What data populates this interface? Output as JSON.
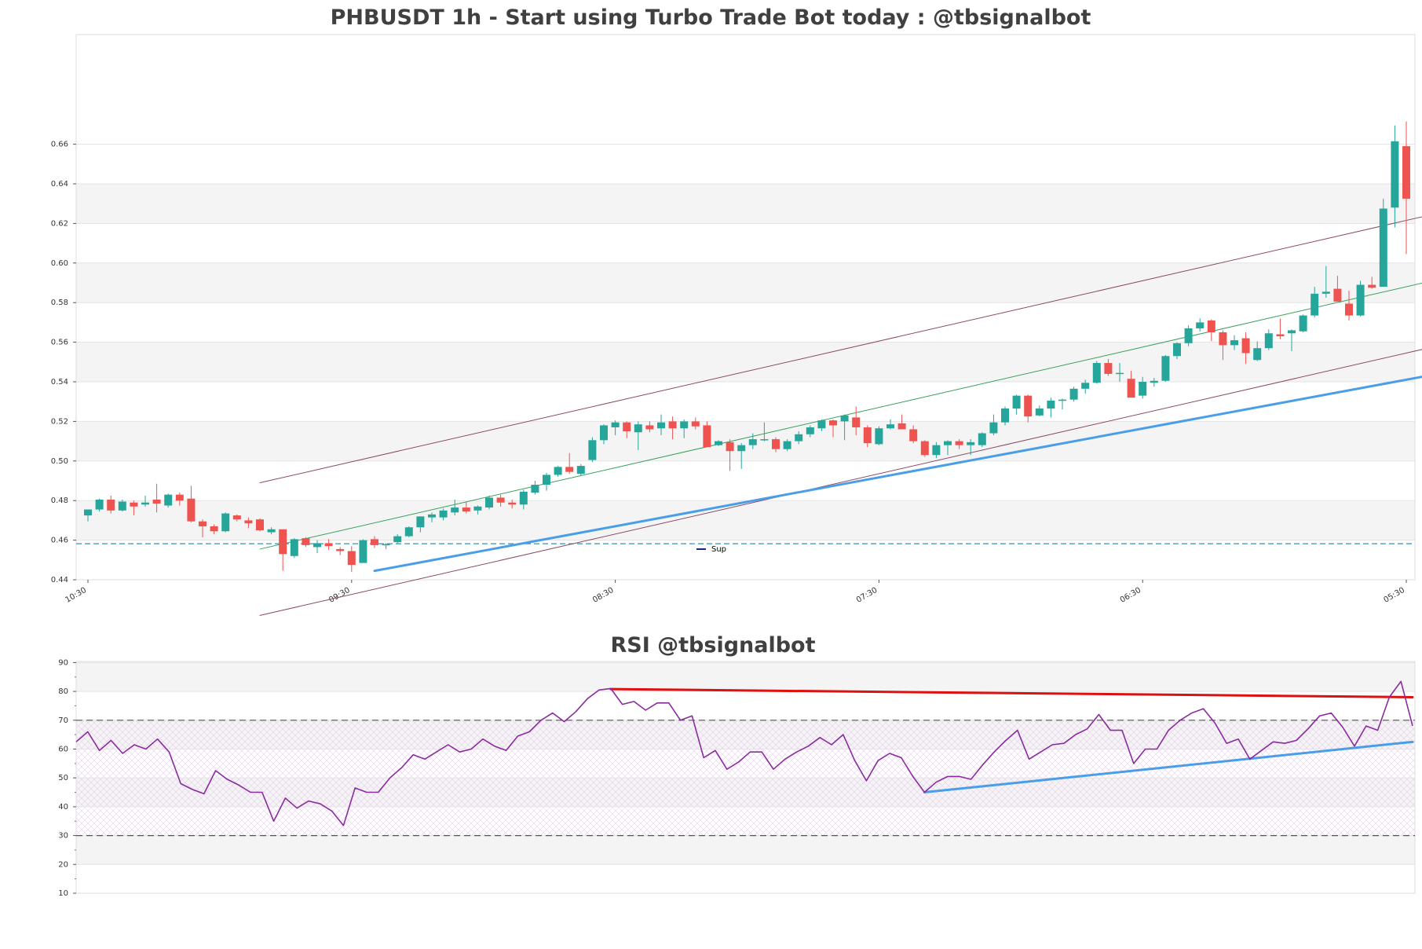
{
  "chart_data": [
    {
      "type": "candlestick",
      "title": "PHBUSDT 1h - Start using Turbo Trade Bot today : @tbsignalbot",
      "ylim": [
        0.44,
        0.674
      ],
      "y_ticks": [
        0.44,
        0.46,
        0.48,
        0.5,
        0.52,
        0.54,
        0.56,
        0.58,
        0.6,
        0.62,
        0.64,
        0.66
      ],
      "x_tick_labels": [
        "10:30",
        "09:30",
        "08:30",
        "07:30",
        "06:30",
        "05:30"
      ],
      "x_tick_index": [
        0,
        23,
        46,
        69,
        92,
        115
      ],
      "candles": [
        [
          0.4725,
          0.4755,
          0.4695,
          0.4755
        ],
        [
          0.4755,
          0.481,
          0.4745,
          0.4805
        ],
        [
          0.4805,
          0.4825,
          0.4735,
          0.475
        ],
        [
          0.475,
          0.4805,
          0.4745,
          0.4795
        ],
        [
          0.479,
          0.48,
          0.4725,
          0.477
        ],
        [
          0.478,
          0.4825,
          0.477,
          0.479
        ],
        [
          0.4805,
          0.4885,
          0.474,
          0.4785
        ],
        [
          0.4775,
          0.4835,
          0.4765,
          0.483
        ],
        [
          0.483,
          0.484,
          0.4775,
          0.48
        ],
        [
          0.481,
          0.4875,
          0.469,
          0.4695
        ],
        [
          0.4695,
          0.4705,
          0.4615,
          0.467
        ],
        [
          0.467,
          0.468,
          0.463,
          0.4645
        ],
        [
          0.4645,
          0.474,
          0.464,
          0.4735
        ],
        [
          0.4725,
          0.473,
          0.4695,
          0.4705
        ],
        [
          0.47,
          0.4715,
          0.466,
          0.4685
        ],
        [
          0.4705,
          0.471,
          0.4645,
          0.465
        ],
        [
          0.464,
          0.4665,
          0.463,
          0.4655
        ],
        [
          0.4655,
          0.4655,
          0.4445,
          0.453
        ],
        [
          0.452,
          0.461,
          0.451,
          0.4605
        ],
        [
          0.461,
          0.4615,
          0.4565,
          0.4575
        ],
        [
          0.4565,
          0.46,
          0.4535,
          0.4585
        ],
        [
          0.4585,
          0.4605,
          0.455,
          0.457
        ],
        [
          0.4555,
          0.4565,
          0.4525,
          0.4545
        ],
        [
          0.4545,
          0.457,
          0.444,
          0.4475
        ],
        [
          0.4485,
          0.4605,
          0.4485,
          0.46
        ],
        [
          0.4605,
          0.462,
          0.456,
          0.4575
        ],
        [
          0.4575,
          0.4585,
          0.4555,
          0.458
        ],
        [
          0.459,
          0.463,
          0.4585,
          0.462
        ],
        [
          0.462,
          0.467,
          0.4615,
          0.4665
        ],
        [
          0.4665,
          0.472,
          0.464,
          0.472
        ],
        [
          0.4715,
          0.474,
          0.469,
          0.473
        ],
        [
          0.4715,
          0.476,
          0.47,
          0.475
        ],
        [
          0.474,
          0.4805,
          0.4725,
          0.4765
        ],
        [
          0.4765,
          0.4795,
          0.4735,
          0.4745
        ],
        [
          0.475,
          0.4775,
          0.473,
          0.477
        ],
        [
          0.4765,
          0.4825,
          0.4755,
          0.4815
        ],
        [
          0.4815,
          0.483,
          0.477,
          0.479
        ],
        [
          0.479,
          0.4805,
          0.476,
          0.478
        ],
        [
          0.478,
          0.4855,
          0.4755,
          0.4845
        ],
        [
          0.484,
          0.49,
          0.483,
          0.488
        ],
        [
          0.488,
          0.494,
          0.485,
          0.493
        ],
        [
          0.493,
          0.4975,
          0.492,
          0.497
        ],
        [
          0.497,
          0.504,
          0.4935,
          0.4945
        ],
        [
          0.4935,
          0.4985,
          0.4925,
          0.4975
        ],
        [
          0.5005,
          0.512,
          0.4995,
          0.5105
        ],
        [
          0.5105,
          0.5185,
          0.5085,
          0.518
        ],
        [
          0.517,
          0.5205,
          0.513,
          0.5195
        ],
        [
          0.5195,
          0.52,
          0.5115,
          0.515
        ],
        [
          0.5145,
          0.52,
          0.5055,
          0.5185
        ],
        [
          0.518,
          0.52,
          0.5145,
          0.516
        ],
        [
          0.5165,
          0.5235,
          0.513,
          0.5195
        ],
        [
          0.52,
          0.5225,
          0.511,
          0.5165
        ],
        [
          0.5165,
          0.521,
          0.5115,
          0.52
        ],
        [
          0.52,
          0.522,
          0.516,
          0.5175
        ],
        [
          0.518,
          0.52,
          0.507,
          0.507
        ],
        [
          0.508,
          0.5105,
          0.5075,
          0.51
        ],
        [
          0.5095,
          0.511,
          0.495,
          0.505
        ],
        [
          0.505,
          0.509,
          0.496,
          0.508
        ],
        [
          0.508,
          0.514,
          0.506,
          0.511
        ],
        [
          0.511,
          0.5195,
          0.51,
          0.511
        ],
        [
          0.511,
          0.512,
          0.5045,
          0.506
        ],
        [
          0.506,
          0.511,
          0.505,
          0.51
        ],
        [
          0.51,
          0.515,
          0.5085,
          0.5135
        ],
        [
          0.5135,
          0.518,
          0.512,
          0.517
        ],
        [
          0.5165,
          0.521,
          0.515,
          0.5205
        ],
        [
          0.5205,
          0.521,
          0.512,
          0.518
        ],
        [
          0.52,
          0.5235,
          0.5105,
          0.523
        ],
        [
          0.522,
          0.5275,
          0.513,
          0.517
        ],
        [
          0.517,
          0.518,
          0.507,
          0.509
        ],
        [
          0.5085,
          0.5175,
          0.508,
          0.5165
        ],
        [
          0.5165,
          0.521,
          0.516,
          0.5185
        ],
        [
          0.519,
          0.5235,
          0.516,
          0.516
        ],
        [
          0.516,
          0.518,
          0.509,
          0.51
        ],
        [
          0.51,
          0.5105,
          0.502,
          0.503
        ],
        [
          0.503,
          0.5095,
          0.5015,
          0.508
        ],
        [
          0.508,
          0.5105,
          0.503,
          0.51
        ],
        [
          0.51,
          0.511,
          0.506,
          0.508
        ],
        [
          0.508,
          0.511,
          0.503,
          0.5095
        ],
        [
          0.508,
          0.5145,
          0.507,
          0.514
        ],
        [
          0.514,
          0.5235,
          0.513,
          0.5195
        ],
        [
          0.5195,
          0.5275,
          0.518,
          0.5265
        ],
        [
          0.5265,
          0.5335,
          0.5235,
          0.533
        ],
        [
          0.533,
          0.5335,
          0.5195,
          0.5225
        ],
        [
          0.523,
          0.528,
          0.5225,
          0.5265
        ],
        [
          0.5265,
          0.532,
          0.522,
          0.5305
        ],
        [
          0.5305,
          0.5315,
          0.526,
          0.531
        ],
        [
          0.531,
          0.5375,
          0.53,
          0.5365
        ],
        [
          0.5365,
          0.541,
          0.534,
          0.5395
        ],
        [
          0.5395,
          0.5505,
          0.539,
          0.5495
        ],
        [
          0.5495,
          0.5515,
          0.543,
          0.544
        ],
        [
          0.544,
          0.5495,
          0.54,
          0.5445
        ],
        [
          0.5415,
          0.5455,
          0.533,
          0.532
        ],
        [
          0.533,
          0.5425,
          0.5315,
          0.54
        ],
        [
          0.5395,
          0.542,
          0.5375,
          0.5405
        ],
        [
          0.5405,
          0.5535,
          0.54,
          0.553
        ],
        [
          0.553,
          0.56,
          0.5515,
          0.5595
        ],
        [
          0.5595,
          0.5685,
          0.558,
          0.567
        ],
        [
          0.567,
          0.572,
          0.5655,
          0.57
        ],
        [
          0.571,
          0.5715,
          0.5605,
          0.565
        ],
        [
          0.565,
          0.566,
          0.551,
          0.5585
        ],
        [
          0.5585,
          0.5635,
          0.556,
          0.561
        ],
        [
          0.562,
          0.565,
          0.549,
          0.5545
        ],
        [
          0.551,
          0.5605,
          0.5505,
          0.557
        ],
        [
          0.557,
          0.5665,
          0.556,
          0.5645
        ],
        [
          0.564,
          0.572,
          0.5615,
          0.563
        ],
        [
          0.5645,
          0.5665,
          0.5555,
          0.566
        ],
        [
          0.5655,
          0.574,
          0.565,
          0.5735
        ],
        [
          0.5735,
          0.588,
          0.5725,
          0.5845
        ],
        [
          0.5845,
          0.5985,
          0.5825,
          0.5855
        ],
        [
          0.587,
          0.5935,
          0.5805,
          0.5805
        ],
        [
          0.5795,
          0.586,
          0.571,
          0.5735
        ],
        [
          0.5735,
          0.591,
          0.573,
          0.589
        ],
        [
          0.589,
          0.593,
          0.587,
          0.5875
        ],
        [
          0.588,
          0.6325,
          0.588,
          0.6275
        ],
        [
          0.628,
          0.6695,
          0.618,
          0.6615
        ],
        [
          0.659,
          0.6715,
          0.6045,
          0.6325
        ]
      ],
      "lines": [
        {
          "name": "channel-upper",
          "color": "#8b4a62",
          "width": 1,
          "from": [
            15,
            0.489
          ],
          "to": [
            118,
            0.6255
          ]
        },
        {
          "name": "channel-middle",
          "color": "#3aa05a",
          "width": 1,
          "from": [
            15,
            0.4555
          ],
          "to": [
            118,
            0.592
          ]
        },
        {
          "name": "channel-lower",
          "color": "#8b4a62",
          "width": 1,
          "from": [
            15,
            0.422
          ],
          "to": [
            118,
            0.5585
          ]
        },
        {
          "name": "support-trend",
          "color": "#4a9ee8",
          "width": 3,
          "from": [
            25,
            0.4445
          ],
          "to": [
            121,
            0.5475
          ]
        }
      ],
      "hlines": [
        {
          "name": "support-level",
          "value": 0.4582,
          "color": "#3a8fb0",
          "style": "dashed"
        }
      ],
      "legend": {
        "label": "Sup",
        "color": "#1a237e",
        "placement": "bottom-center"
      }
    },
    {
      "type": "line",
      "title": "RSI @tbsignalbot",
      "ylim": [
        10,
        90
      ],
      "y_ticks": [
        10,
        20,
        30,
        40,
        50,
        60,
        70,
        80,
        90
      ],
      "series": [
        {
          "color": "#8a2b9e",
          "values": [
            62.5,
            66,
            59.5,
            63,
            58.5,
            61.5,
            60,
            63.5,
            59,
            48,
            46,
            44.5,
            52.5,
            49.5,
            47.5,
            45,
            45,
            35,
            43,
            39.5,
            42,
            41,
            38.5,
            33.5,
            46.5,
            45,
            45,
            50,
            53.5,
            58,
            56.5,
            59,
            61.5,
            59,
            60,
            63.5,
            61,
            59.5,
            64.5,
            66,
            70,
            72.5,
            69.5,
            73,
            77.5,
            80.5,
            81,
            75.5,
            76.5,
            73.5,
            76,
            76,
            70,
            71.5,
            57,
            59.5,
            53,
            55.5,
            59,
            59,
            53,
            56.5,
            59,
            61,
            64,
            61.5,
            65,
            56,
            49,
            56,
            58.5,
            57,
            50.5,
            45,
            48.5,
            50.5,
            50.5,
            49.5,
            54.5,
            59,
            63,
            66.5,
            56.5,
            59,
            61.5,
            62,
            65,
            67,
            72,
            66.5,
            66.5,
            55,
            60,
            60,
            66.5,
            70,
            72.5,
            74,
            69,
            62,
            63.5,
            56.5,
            59.5,
            62.5,
            62,
            63,
            67,
            71.5,
            72.5,
            67.5,
            61,
            68,
            66.5,
            78,
            83.5,
            68
          ]
        }
      ],
      "trend_lines": [
        {
          "name": "rsi-resistance-trend",
          "color": "#dd1111",
          "from": [
            46,
            80.8
          ],
          "to": [
            115,
            78.0
          ]
        },
        {
          "name": "rsi-support-trend",
          "color": "#4a9ee8",
          "from": [
            73,
            45.0
          ],
          "to": [
            115,
            62.5
          ]
        }
      ],
      "hlines": [
        70,
        30
      ],
      "bands": [
        [
          30,
          70
        ]
      ]
    }
  ],
  "colors": {
    "up": "#26a69a",
    "down": "#ef5350",
    "grid": "#e3e3e3",
    "band": "#f4f4f4"
  }
}
